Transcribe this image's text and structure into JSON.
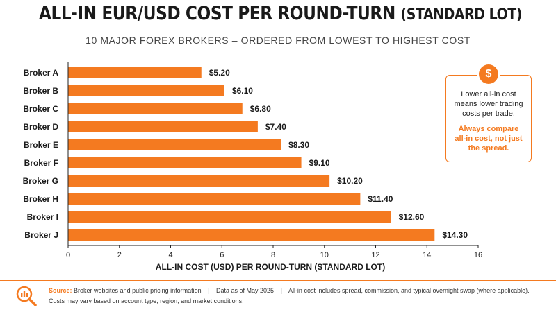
{
  "header": {
    "title_main": "ALL-IN EUR/USD COST PER ROUND-TURN",
    "title_paren": "(STANDARD LOT)",
    "subtitle": "10 MAJOR FOREX BROKERS – ORDERED FROM LOWEST TO HIGHEST COST"
  },
  "colors": {
    "accent": "#f47a20",
    "text": "#1a1a1a"
  },
  "chart_data": {
    "type": "bar",
    "orientation": "horizontal",
    "categories": [
      "Broker A",
      "Broker B",
      "Broker C",
      "Broker D",
      "Broker E",
      "Broker F",
      "Broker G",
      "Broker H",
      "Broker I",
      "Broker J"
    ],
    "values": [
      5.2,
      6.1,
      6.8,
      7.4,
      8.3,
      9.1,
      10.2,
      11.4,
      12.6,
      14.3
    ],
    "data_labels": [
      "$5.20",
      "$6.10",
      "$6.80",
      "$7.40",
      "$8.30",
      "$9.10",
      "$10.20",
      "$11.40",
      "$12.60",
      "$14.30"
    ],
    "xlabel": "ALL-IN COST (USD) PER ROUND-TURN (STANDARD LOT)",
    "xlim": [
      0,
      16
    ],
    "xticks": [
      0,
      2,
      4,
      6,
      8,
      10,
      12,
      14,
      16
    ],
    "grid": false,
    "bar_color": "#f47a20"
  },
  "callout": {
    "icon": "dollar-icon",
    "icon_glyph": "$",
    "text": "Lower all-in cost means lower trading costs per trade.",
    "highlight": "Always compare all-in cost, not just the spread."
  },
  "footer": {
    "icon": "chart-magnifier-icon",
    "source_label": "Source:",
    "source_text": "Broker websites and public pricing information",
    "separator": "|",
    "date_text": "Data as of May 2025",
    "note_text": "All-in cost includes spread, commission, and typical overnight swap (where applicable).",
    "line2": "Costs may vary based on account type, region, and market conditions."
  }
}
